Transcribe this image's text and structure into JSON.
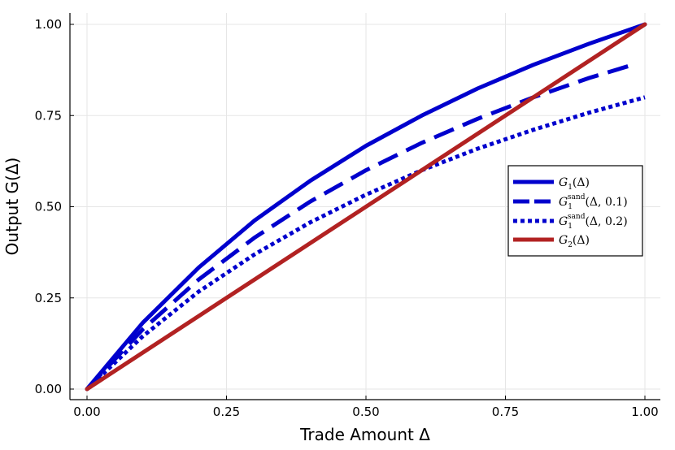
{
  "chart_data": {
    "type": "line",
    "xlabel": "Trade Amount Δ",
    "ylabel": "Output G(Δ)",
    "xlim": [
      0,
      1
    ],
    "ylim": [
      0,
      1
    ],
    "xticks": [
      "0.00",
      "0.25",
      "0.50",
      "0.75",
      "1.00"
    ],
    "yticks": [
      "0.00",
      "0.25",
      "0.50",
      "0.75",
      "1.00"
    ],
    "grid": true,
    "legend_position": "right",
    "series": [
      {
        "name": "G1(Δ)",
        "color": "#0000CD",
        "style": "solid",
        "x": [
          0,
          0.1,
          0.2,
          0.3,
          0.4,
          0.5,
          0.6,
          0.7,
          0.8,
          0.9,
          1.0
        ],
        "y": [
          0,
          0.182,
          0.333,
          0.462,
          0.571,
          0.667,
          0.75,
          0.824,
          0.889,
          0.947,
          1.0
        ]
      },
      {
        "name": "G1sand(Δ, 0.1)",
        "color": "#0000CD",
        "style": "dashed",
        "x": [
          0,
          0.1,
          0.2,
          0.3,
          0.4,
          0.5,
          0.6,
          0.7,
          0.8,
          0.9,
          0.98
        ],
        "y": [
          0,
          0.164,
          0.3,
          0.415,
          0.514,
          0.6,
          0.675,
          0.741,
          0.8,
          0.853,
          0.89
        ]
      },
      {
        "name": "G1sand(Δ, 0.2)",
        "color": "#0000CD",
        "style": "dotted",
        "x": [
          0,
          0.1,
          0.2,
          0.3,
          0.4,
          0.5,
          0.6,
          0.7,
          0.8,
          0.9,
          1.0
        ],
        "y": [
          0,
          0.145,
          0.267,
          0.369,
          0.457,
          0.533,
          0.6,
          0.659,
          0.711,
          0.758,
          0.8
        ]
      },
      {
        "name": "G2(Δ)",
        "color": "#B22222",
        "style": "solid",
        "x": [
          0,
          1.0
        ],
        "y": [
          0,
          1.0
        ]
      }
    ],
    "legend": [
      {
        "base": "G",
        "sub": "1",
        "sup": "",
        "args": "(Δ)"
      },
      {
        "base": "G",
        "sub": "1",
        "sup": "sand",
        "args": "(Δ, 0.1)"
      },
      {
        "base": "G",
        "sub": "1",
        "sup": "sand",
        "args": "(Δ, 0.2)"
      },
      {
        "base": "G",
        "sub": "2",
        "sup": "",
        "args": "(Δ)"
      }
    ]
  }
}
